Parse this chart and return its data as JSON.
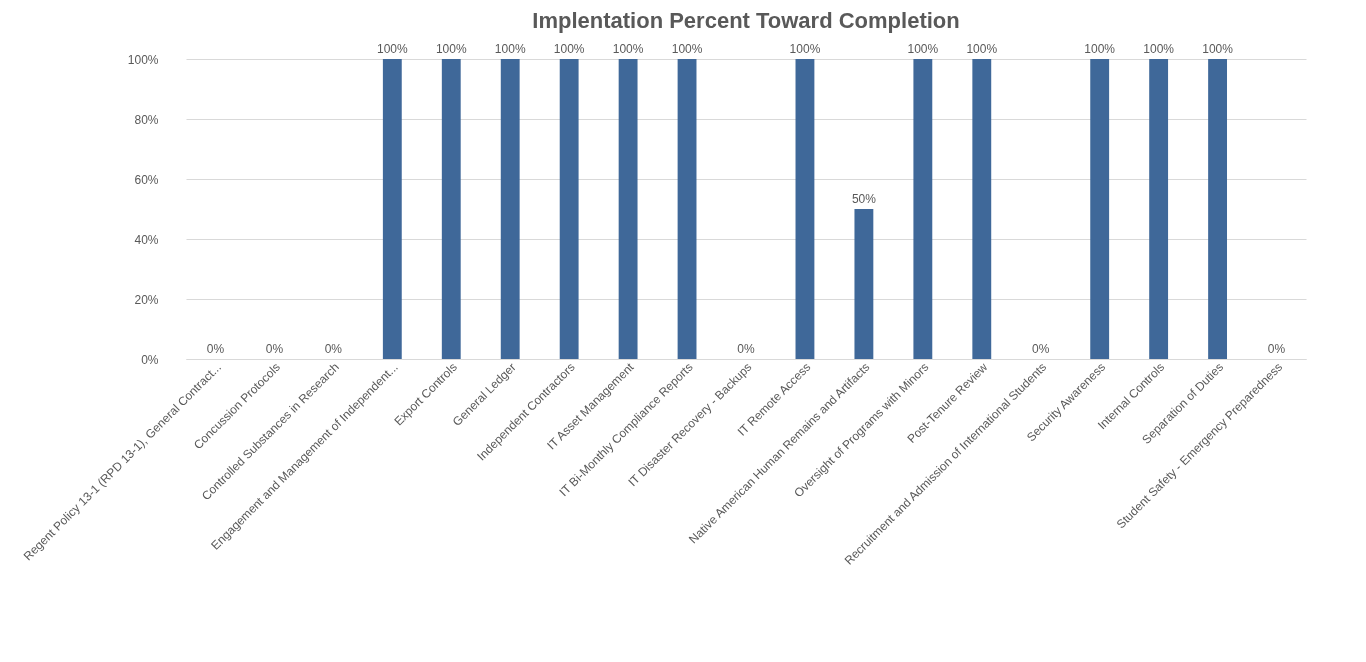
{
  "chart_data": {
    "type": "bar",
    "title": "Implentation Percent Toward Completion",
    "categories": [
      "Regent Policy 13-1 (RPD 13-1), General Contract...",
      "Concussion Protocols",
      "Controlled Substances in Research",
      "Engagement and Management of Independent...",
      "Export Controls",
      "General Ledger",
      "Independent Contractors",
      "IT Asset Management",
      "IT Bi-Monthly Compliance Reports",
      "IT Disaster Recovery - Backups",
      "IT Remote Access",
      "Native American Human Remains and Artifacts",
      "Oversight of Programs with Minors",
      "Post-Tenure Review",
      "Recruitment and Admission of International Students",
      "Security Awareness",
      "Internal Controls",
      "Separation of Duties",
      "Student Safety - Emergency Preparedness"
    ],
    "values": [
      0,
      0,
      0,
      100,
      100,
      100,
      100,
      100,
      100,
      0,
      100,
      50,
      100,
      100,
      0,
      100,
      100,
      100,
      0
    ],
    "value_labels": [
      "0%",
      "0%",
      "0%",
      "100%",
      "100%",
      "100%",
      "100%",
      "100%",
      "100%",
      "0%",
      "100%",
      "50%",
      "100%",
      "100%",
      "0%",
      "100%",
      "100%",
      "100%",
      "0%"
    ],
    "color": "#3f6899",
    "ylim": [
      0,
      100
    ],
    "yticks": [
      {
        "value": 0,
        "label": "0%"
      },
      {
        "value": 20,
        "label": "20%"
      },
      {
        "value": 40,
        "label": "40%"
      },
      {
        "value": 60,
        "label": "60%"
      },
      {
        "value": 80,
        "label": "80%"
      },
      {
        "value": 100,
        "label": "100%"
      }
    ],
    "grid": "y"
  }
}
